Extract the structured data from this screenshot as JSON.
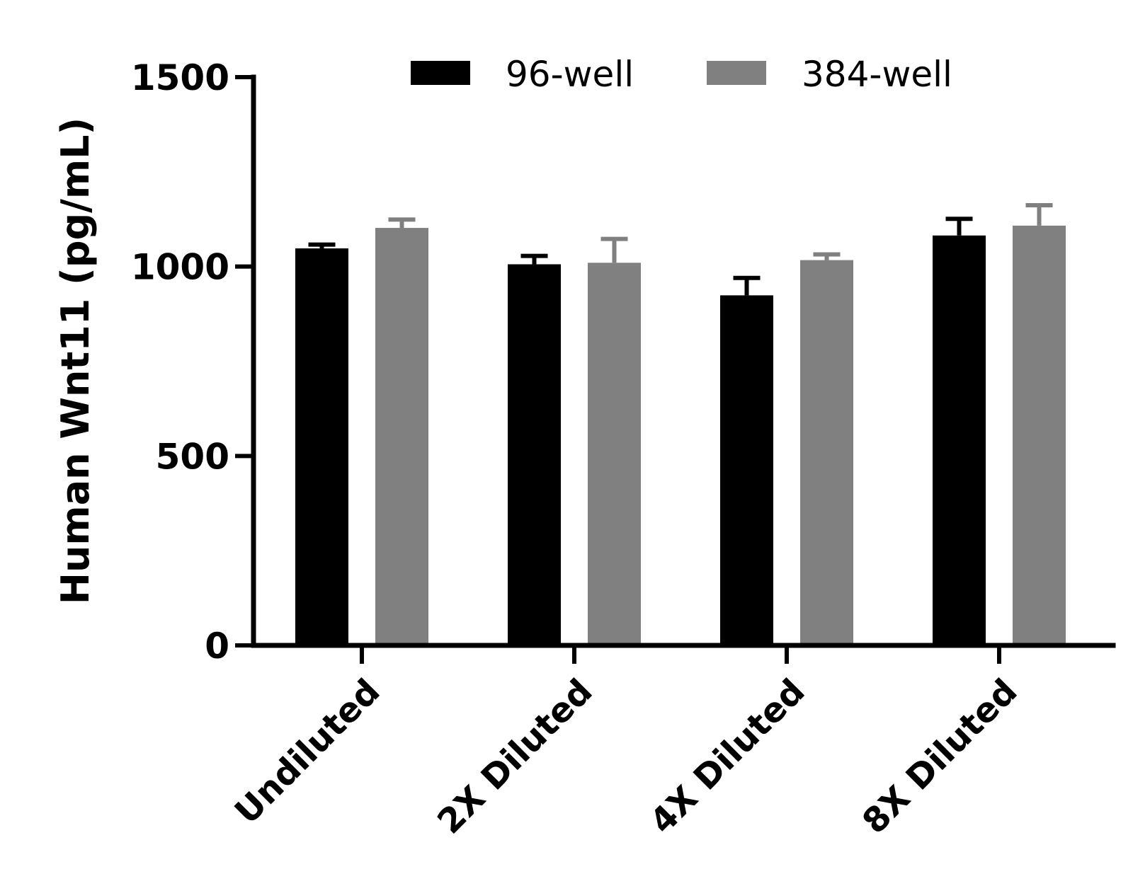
{
  "chart_data": {
    "type": "bar",
    "categories": [
      "Undiluted",
      "2X Diluted",
      "4X Diluted",
      "8X Diluted"
    ],
    "series": [
      {
        "name": "96-well",
        "color": "#000000",
        "values": [
          1048,
          1006,
          924,
          1082
        ],
        "errors": [
          10,
          22,
          46,
          44
        ]
      },
      {
        "name": "384-well",
        "color": "#808080",
        "values": [
          1102,
          1010,
          1017,
          1108
        ],
        "errors": [
          22,
          63,
          15,
          54
        ]
      }
    ],
    "ylabel": "Human Wnt11 (pg/mL)",
    "xlabel": "",
    "ylim": [
      0,
      1500
    ],
    "yticks": [
      "0",
      "500",
      "1000",
      "1500"
    ],
    "grid": false,
    "legend_position": "top"
  }
}
